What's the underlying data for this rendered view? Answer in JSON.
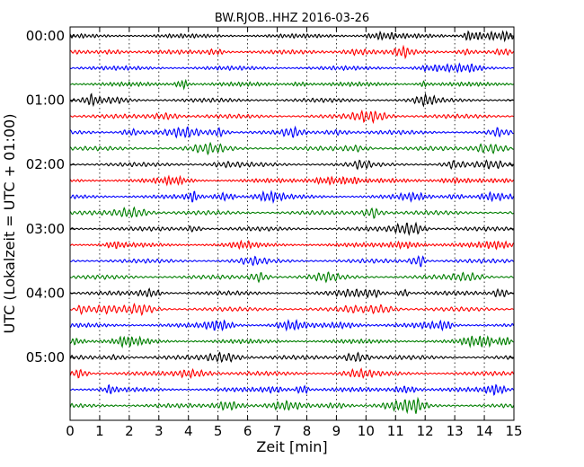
{
  "chart_data": {
    "type": "line",
    "title": "BW.RJOB..HHZ 2016-03-26",
    "xlabel": "Zeit  [min]",
    "ylabel": "UTC (Lokalzeit = UTC + 01:00)",
    "xlim": [
      0,
      15
    ],
    "xticks": [
      0,
      1,
      2,
      3,
      4,
      5,
      6,
      7,
      8,
      9,
      10,
      11,
      12,
      13,
      14,
      15
    ],
    "row_interval_minutes": 15,
    "hour_labels": [
      "00:00",
      "01:00",
      "02:00",
      "03:00",
      "04:00",
      "05:00"
    ],
    "row_count": 24,
    "color_cycle": [
      "#000000",
      "#ff0000",
      "#0000ff",
      "#007f00"
    ],
    "grid": "vertical dotted at each minute"
  }
}
